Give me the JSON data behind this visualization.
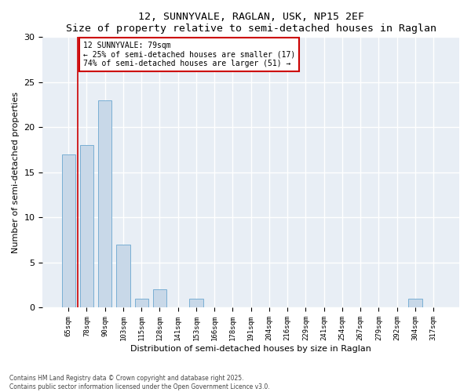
{
  "title": "12, SUNNYVALE, RAGLAN, USK, NP15 2EF",
  "subtitle": "Size of property relative to semi-detached houses in Raglan",
  "xlabel": "Distribution of semi-detached houses by size in Raglan",
  "ylabel": "Number of semi-detached properties",
  "categories": [
    "65sqm",
    "78sqm",
    "90sqm",
    "103sqm",
    "115sqm",
    "128sqm",
    "141sqm",
    "153sqm",
    "166sqm",
    "178sqm",
    "191sqm",
    "204sqm",
    "216sqm",
    "229sqm",
    "241sqm",
    "254sqm",
    "267sqm",
    "279sqm",
    "292sqm",
    "304sqm",
    "317sqm"
  ],
  "values": [
    17,
    18,
    23,
    7,
    1,
    2,
    0,
    1,
    0,
    0,
    0,
    0,
    0,
    0,
    0,
    0,
    0,
    0,
    0,
    1,
    0
  ],
  "bar_color": "#c8d8e8",
  "bar_edge_color": "#7aafd4",
  "vline_x": 0.5,
  "vline_color": "#cc0000",
  "annotation_text1": "12 SUNNYVALE: 79sqm",
  "annotation_text2": "← 25% of semi-detached houses are smaller (17)",
  "annotation_text3": "74% of semi-detached houses are larger (51) →",
  "annotation_box_color": "#cc0000",
  "ylim": [
    0,
    30
  ],
  "yticks": [
    0,
    5,
    10,
    15,
    20,
    25,
    30
  ],
  "footer1": "Contains HM Land Registry data © Crown copyright and database right 2025.",
  "footer2": "Contains public sector information licensed under the Open Government Licence v3.0.",
  "background_color": "#ffffff",
  "plot_background_color": "#e8eef5"
}
